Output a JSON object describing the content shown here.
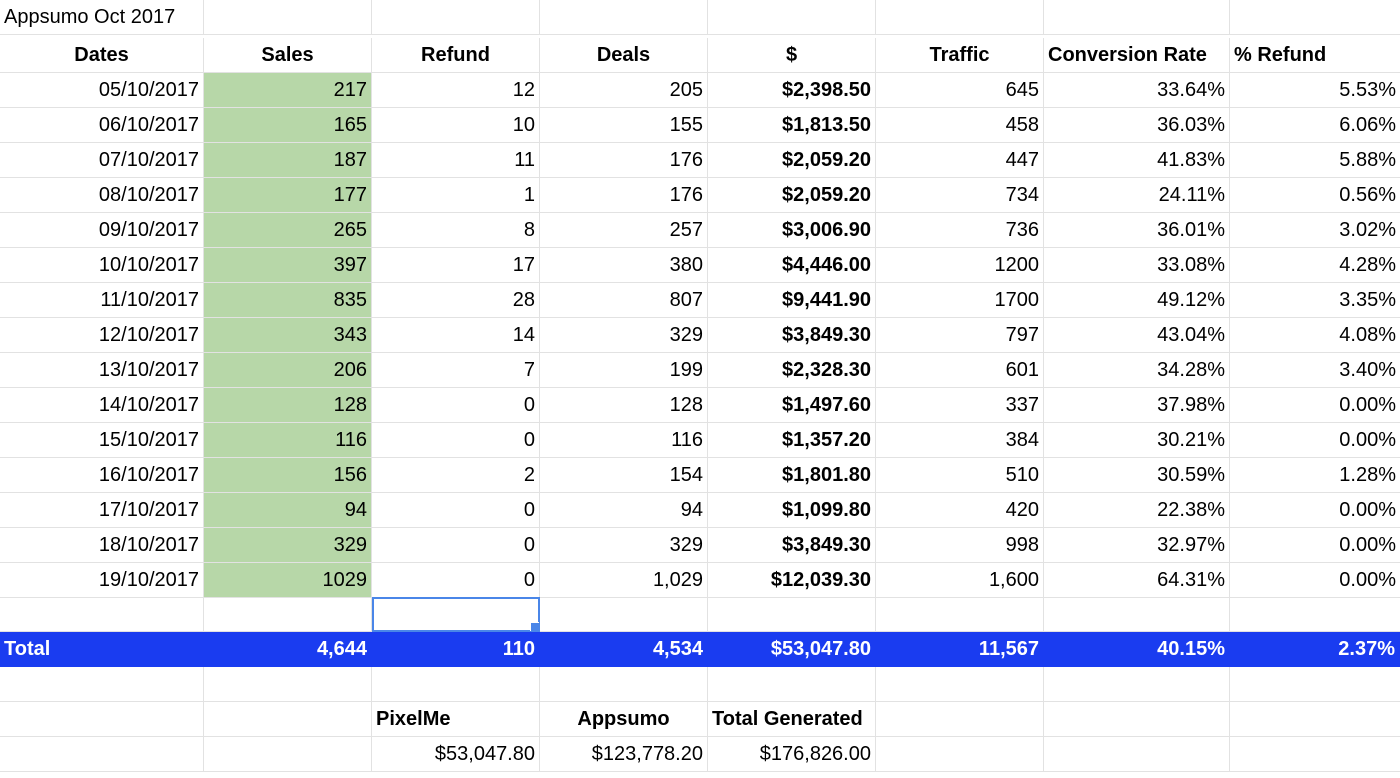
{
  "title": "Appsumo Oct 2017",
  "headers": [
    "Dates",
    "Sales",
    "Refund",
    "Deals",
    "$",
    "Traffic",
    "Conversion Rate",
    "% Refund"
  ],
  "rows": [
    [
      "05/10/2017",
      "217",
      "12",
      "205",
      "$2,398.50",
      "645",
      "33.64%",
      "5.53%"
    ],
    [
      "06/10/2017",
      "165",
      "10",
      "155",
      "$1,813.50",
      "458",
      "36.03%",
      "6.06%"
    ],
    [
      "07/10/2017",
      "187",
      "11",
      "176",
      "$2,059.20",
      "447",
      "41.83%",
      "5.88%"
    ],
    [
      "08/10/2017",
      "177",
      "1",
      "176",
      "$2,059.20",
      "734",
      "24.11%",
      "0.56%"
    ],
    [
      "09/10/2017",
      "265",
      "8",
      "257",
      "$3,006.90",
      "736",
      "36.01%",
      "3.02%"
    ],
    [
      "10/10/2017",
      "397",
      "17",
      "380",
      "$4,446.00",
      "1200",
      "33.08%",
      "4.28%"
    ],
    [
      "11/10/2017",
      "835",
      "28",
      "807",
      "$9,441.90",
      "1700",
      "49.12%",
      "3.35%"
    ],
    [
      "12/10/2017",
      "343",
      "14",
      "329",
      "$3,849.30",
      "797",
      "43.04%",
      "4.08%"
    ],
    [
      "13/10/2017",
      "206",
      "7",
      "199",
      "$2,328.30",
      "601",
      "34.28%",
      "3.40%"
    ],
    [
      "14/10/2017",
      "128",
      "0",
      "128",
      "$1,497.60",
      "337",
      "37.98%",
      "0.00%"
    ],
    [
      "15/10/2017",
      "116",
      "0",
      "116",
      "$1,357.20",
      "384",
      "30.21%",
      "0.00%"
    ],
    [
      "16/10/2017",
      "156",
      "2",
      "154",
      "$1,801.80",
      "510",
      "30.59%",
      "1.28%"
    ],
    [
      "17/10/2017",
      "94",
      "0",
      "94",
      "$1,099.80",
      "420",
      "22.38%",
      "0.00%"
    ],
    [
      "18/10/2017",
      "329",
      "0",
      "329",
      "$3,849.30",
      "998",
      "32.97%",
      "0.00%"
    ],
    [
      "19/10/2017",
      "1029",
      "0",
      "1,029",
      "$12,039.30",
      "1,600",
      "64.31%",
      "0.00%"
    ]
  ],
  "total": [
    "Total",
    "4,644",
    "110",
    "4,534",
    "$53,047.80",
    "11,567",
    "40.15%",
    "2.37%"
  ],
  "summary": {
    "headers": [
      "PixelMe",
      "Appsumo",
      "Total Generated"
    ],
    "values": [
      "$53,047.80",
      "$123,778.20",
      "$176,826.00"
    ]
  },
  "colors": {
    "sales_fill": "#b7d7a8",
    "total_row_fill": "#1a3cf0",
    "selection": "#4a86e8",
    "gridline": "#e2e2e2"
  }
}
